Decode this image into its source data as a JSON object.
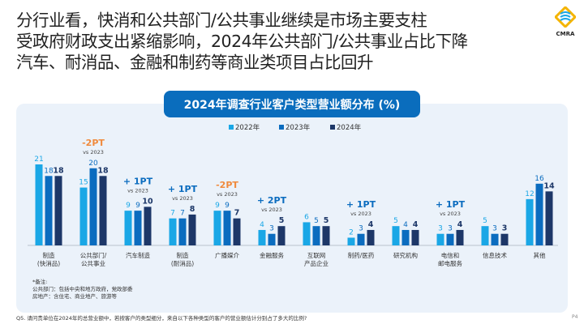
{
  "title_lines": [
    "分行业看，快消和公共部门/公共事业继续是市场主要支柱",
    "受政府财政支出紧缩影响，2024年公共部门/公共事业占比下降",
    "汽车、耐消品、金融和制药等商业类项目占比回升"
  ],
  "logo": "CMRA",
  "chart_data": {
    "type": "bar",
    "title": "2024年调查行业客户类型营业额分布 (%)",
    "categories": [
      [
        "制造",
        "(快消品)"
      ],
      [
        "公共部门/",
        "公共事业"
      ],
      [
        "汽车制造"
      ],
      [
        "制造",
        "(耐消品)"
      ],
      [
        "广播媒介"
      ],
      [
        "金融服务"
      ],
      [
        "互联网",
        "产品企业"
      ],
      [
        "制药/医药"
      ],
      [
        "研究机构"
      ],
      [
        "电信和",
        "邮电服务"
      ],
      [
        "信息技术"
      ],
      [
        "其他"
      ]
    ],
    "series": [
      {
        "name": "2022年",
        "color": "#1aa7e6",
        "values": [
          21,
          15,
          9,
          7,
          9,
          4,
          6,
          2,
          5,
          3,
          5,
          12
        ]
      },
      {
        "name": "2023年",
        "color": "#0b6cbf",
        "values": [
          18,
          20,
          9,
          7,
          9,
          3,
          5,
          3,
          4,
          3,
          3,
          16
        ]
      },
      {
        "name": "2024年",
        "color": "#1d3768",
        "values": [
          18,
          18,
          10,
          8,
          7,
          5,
          5,
          4,
          4,
          4,
          3,
          14
        ]
      }
    ],
    "annotations": [
      {
        "category": 1,
        "text": "-2PT",
        "sub": "vs 2023",
        "color": "#f08a3c"
      },
      {
        "category": 2,
        "text": "+ 1PT",
        "sub": "vs 2023",
        "color": "#0b6cbf"
      },
      {
        "category": 3,
        "text": "+ 1PT",
        "sub": "vs 2023",
        "color": "#0b6cbf"
      },
      {
        "category": 4,
        "text": "-2PT",
        "sub": "vs 2023",
        "color": "#f08a3c"
      },
      {
        "category": 5,
        "text": "+ 2PT",
        "sub": "vs 2023",
        "color": "#0b6cbf"
      },
      {
        "category": 7,
        "text": "+ 1PT",
        "sub": "vs 2023",
        "color": "#0b6cbf"
      },
      {
        "category": 9,
        "text": "+ 1PT",
        "sub": "vs 2023",
        "color": "#0b6cbf"
      }
    ],
    "legend_position": "top-center",
    "grid": false,
    "ylim": [
      0,
      21
    ]
  },
  "notes": [
    "*备注:",
    "公共部门：包括中央和地方政府，党政部委",
    "房地产：含住宅、商业地产、旅游等"
  ],
  "footer": "Q5. 请问贵单位在2024年的总营业额中，若按客户的类型细分，来自以下各种类型的客户的营业额估计分别占了多大的比例?",
  "page": "P4"
}
